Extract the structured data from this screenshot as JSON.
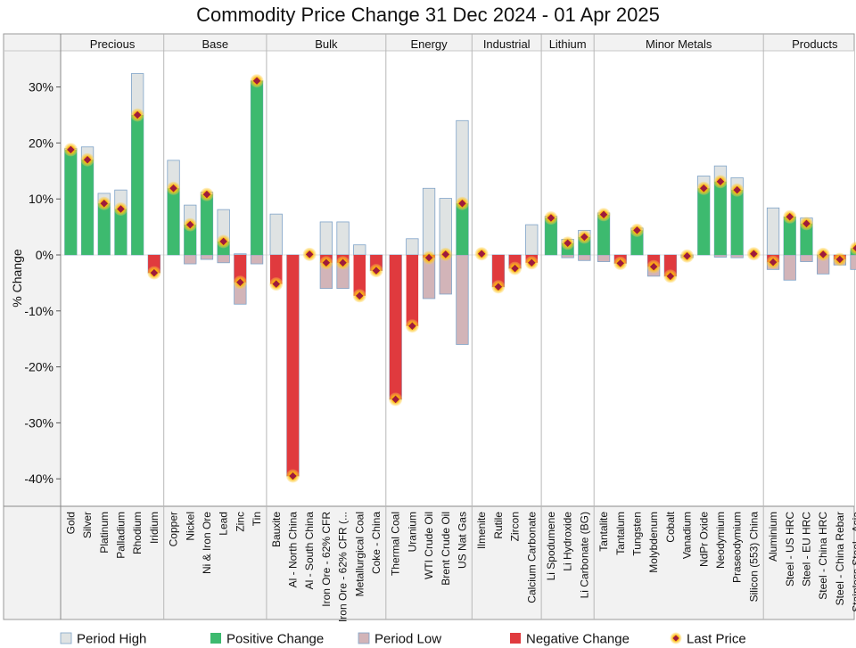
{
  "chart_data": {
    "type": "bar",
    "title": "Commodity Price Change 31 Dec 2024 - 01 Apr 2025",
    "ylabel": "% Change",
    "xlabel": "",
    "ylim": [
      -42,
      36
    ],
    "yticks": [
      30,
      20,
      10,
      0,
      -10,
      -20,
      -30,
      -40
    ],
    "ytick_labels": [
      "30%",
      "20%",
      "10%",
      "0%",
      "-10%",
      "-20%",
      "-30%",
      "-40%"
    ],
    "legend": [
      "Period High",
      "Positive Change",
      "Period Low",
      "Negative Change",
      "Last Price"
    ],
    "colors": {
      "period_high_fill": "#dfe3e3",
      "period_high_stroke": "#7fa3c8",
      "positive": "#3dba6f",
      "period_low_fill": "#d2b4b8",
      "negative": "#e03a3e",
      "marker_fill": "#9e1b3c",
      "marker_halo": "#ffb800",
      "panel_bg": "#f2f2f2",
      "separator": "#b8b8b8"
    },
    "groups": [
      {
        "name": "Precious",
        "items": [
          {
            "label": "Gold",
            "high": 19.0,
            "low": 0,
            "last": 18.8
          },
          {
            "label": "Silver",
            "high": 19.3,
            "low": 0,
            "last": 17.0
          },
          {
            "label": "Platinum",
            "high": 11.0,
            "low": 0,
            "last": 9.2
          },
          {
            "label": "Palladium",
            "high": 11.6,
            "low": 0,
            "last": 8.2
          },
          {
            "label": "Rhodium",
            "high": 32.4,
            "low": 0,
            "last": 25.0
          },
          {
            "label": "Iridium",
            "high": 0,
            "low": -3.2,
            "last": -3.2
          }
        ]
      },
      {
        "name": "Base",
        "items": [
          {
            "label": "Copper",
            "high": 16.9,
            "low": 0,
            "last": 11.9
          },
          {
            "label": "Nickel",
            "high": 8.9,
            "low": -1.6,
            "last": 5.4
          },
          {
            "label": "Ni & Iron Ore",
            "high": 11.2,
            "low": -0.8,
            "last": 10.8
          },
          {
            "label": "Lead",
            "high": 8.1,
            "low": -1.4,
            "last": 2.4
          },
          {
            "label": "Zinc",
            "high": 0.2,
            "low": -8.8,
            "last": -4.9
          },
          {
            "label": "Tin",
            "high": 31.1,
            "low": -1.6,
            "last": 31.1
          }
        ]
      },
      {
        "name": "Bulk",
        "items": [
          {
            "label": "Bauxite",
            "high": 7.3,
            "low": 0,
            "last": -5.2
          },
          {
            "label": "Al - North China",
            "high": 0,
            "low": -39.5,
            "last": -39.5
          },
          {
            "label": "Al - South China",
            "high": 0,
            "low": 0,
            "last": 0.1
          },
          {
            "label": "Iron Ore - 62% CFR",
            "high": 5.9,
            "low": -6.0,
            "last": -1.4
          },
          {
            "label": "Iron Ore - 62% CFR (...",
            "high": 5.9,
            "low": -6.0,
            "last": -1.4
          },
          {
            "label": "Metallurgical Coal",
            "high": 1.8,
            "low": 0,
            "last": -7.3
          },
          {
            "label": "Coke - China",
            "high": 0,
            "low": -2.8,
            "last": -2.8
          }
        ]
      },
      {
        "name": "Energy",
        "items": [
          {
            "label": "Thermal Coal",
            "high": 0,
            "low": -25.8,
            "last": -25.8
          },
          {
            "label": "Uranium",
            "high": 2.9,
            "low": 0,
            "last": -12.7
          },
          {
            "label": "WTI Crude Oil",
            "high": 11.9,
            "low": -7.8,
            "last": -0.5
          },
          {
            "label": "Brent Crude Oil",
            "high": 10.1,
            "low": -7.0,
            "last": 0.1
          },
          {
            "label": "US Nat Gas",
            "high": 24.0,
            "low": -16.0,
            "last": 9.2
          }
        ]
      },
      {
        "name": "Industrial",
        "items": [
          {
            "label": "Ilmenite",
            "high": 0,
            "low": 0,
            "last": 0.2
          },
          {
            "label": "Rutile",
            "high": 0,
            "low": -5.7,
            "last": -5.7
          },
          {
            "label": "Zircon",
            "high": 0,
            "low": -2.4,
            "last": -2.4
          },
          {
            "label": "Calcium Carbonate",
            "high": 5.4,
            "low": 0,
            "last": -1.4
          }
        ]
      },
      {
        "name": "Lithium",
        "items": [
          {
            "label": "Li Spodumene",
            "high": 6.9,
            "low": 0,
            "last": 6.6
          },
          {
            "label": "Li Hydroxide",
            "high": 2.8,
            "low": -0.5,
            "last": 2.1
          },
          {
            "label": "Li Carbonate (BG)",
            "high": 4.4,
            "low": -1.0,
            "last": 3.2
          }
        ]
      },
      {
        "name": "Minor Metals",
        "items": [
          {
            "label": "Tantalite",
            "high": 7.5,
            "low": -1.2,
            "last": 7.2
          },
          {
            "label": "Tantalum",
            "high": 0,
            "low": -1.5,
            "last": -1.5
          },
          {
            "label": "Tungsten",
            "high": 4.8,
            "low": 0,
            "last": 4.4
          },
          {
            "label": "Molybdenum",
            "high": 0,
            "low": -3.8,
            "last": -2.1
          },
          {
            "label": "Cobalt",
            "high": 0,
            "low": -3.8,
            "last": -3.8
          },
          {
            "label": "Vanadium",
            "high": 0,
            "low": -0.5,
            "last": -0.2
          },
          {
            "label": "NdPr Oxide",
            "high": 14.1,
            "low": 0,
            "last": 11.9
          },
          {
            "label": "Neodymium",
            "high": 15.9,
            "low": -0.4,
            "last": 13.1
          },
          {
            "label": "Praseodymium",
            "high": 13.8,
            "low": -0.5,
            "last": 11.6
          },
          {
            "label": "Silicon (553) China",
            "high": 0,
            "low": 0,
            "last": 0.2
          }
        ]
      },
      {
        "name": "Products",
        "items": [
          {
            "label": "Aluminium",
            "high": 8.4,
            "low": -2.6,
            "last": -1.3
          },
          {
            "label": "Steel - US HRC",
            "high": 6.8,
            "low": -4.5,
            "last": 6.8
          },
          {
            "label": "Steel - EU HRC",
            "high": 6.6,
            "low": -1.2,
            "last": 5.6
          },
          {
            "label": "Steel - China HRC",
            "high": 0,
            "low": -3.4,
            "last": 0.1
          },
          {
            "label": "Steel - China Rebar",
            "high": 0,
            "low": -1.8,
            "last": -0.8
          },
          {
            "label": "Stainless Steel - Asia",
            "high": 0.8,
            "low": -2.6,
            "last": 1.2
          }
        ]
      }
    ]
  }
}
